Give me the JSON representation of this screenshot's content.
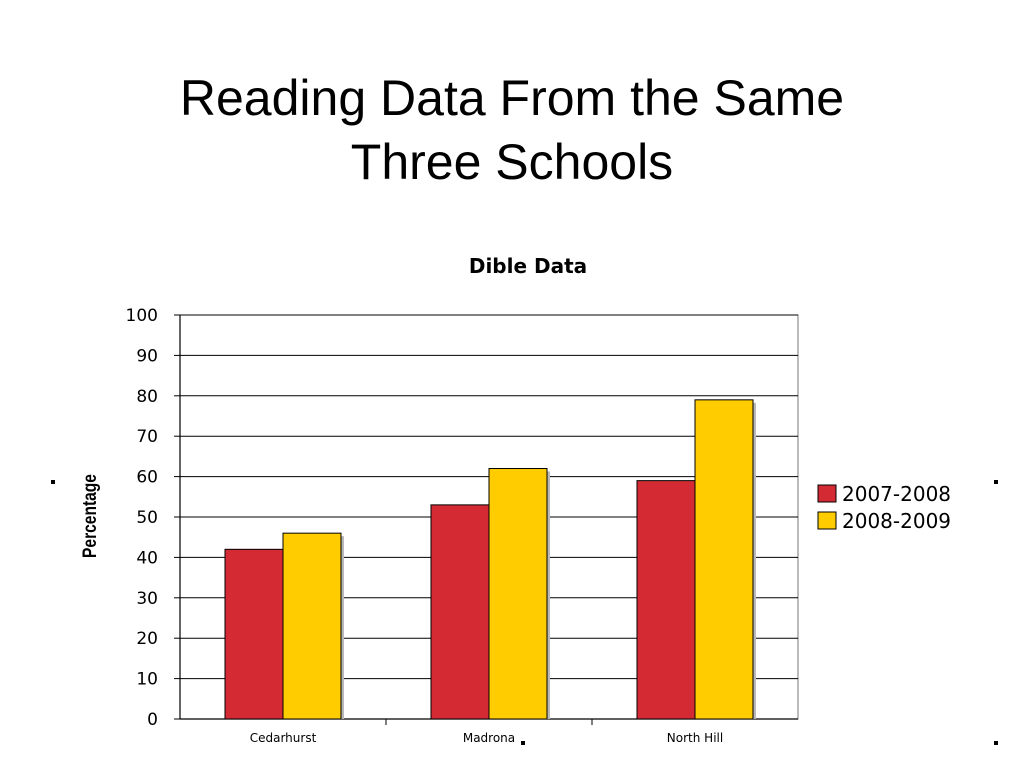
{
  "slide": {
    "title_line1": "Reading Data From the Same",
    "title_line2": "Three Schools"
  },
  "chart_data": {
    "type": "bar",
    "title": "Dible Data",
    "xlabel": "",
    "ylabel": "Percentage",
    "ylim": [
      0,
      100
    ],
    "yticks": [
      0,
      10,
      20,
      30,
      40,
      50,
      60,
      70,
      80,
      90,
      100
    ],
    "grid": true,
    "legend_position": "right",
    "categories": [
      "Cedarhurst",
      "Madrona",
      "North Hill"
    ],
    "series": [
      {
        "name": "2007-2008",
        "values": [
          42,
          53,
          59
        ],
        "color": "#d42a33"
      },
      {
        "name": "2008-2009",
        "values": [
          46,
          62,
          79
        ],
        "color": "#ffcc00"
      }
    ]
  }
}
